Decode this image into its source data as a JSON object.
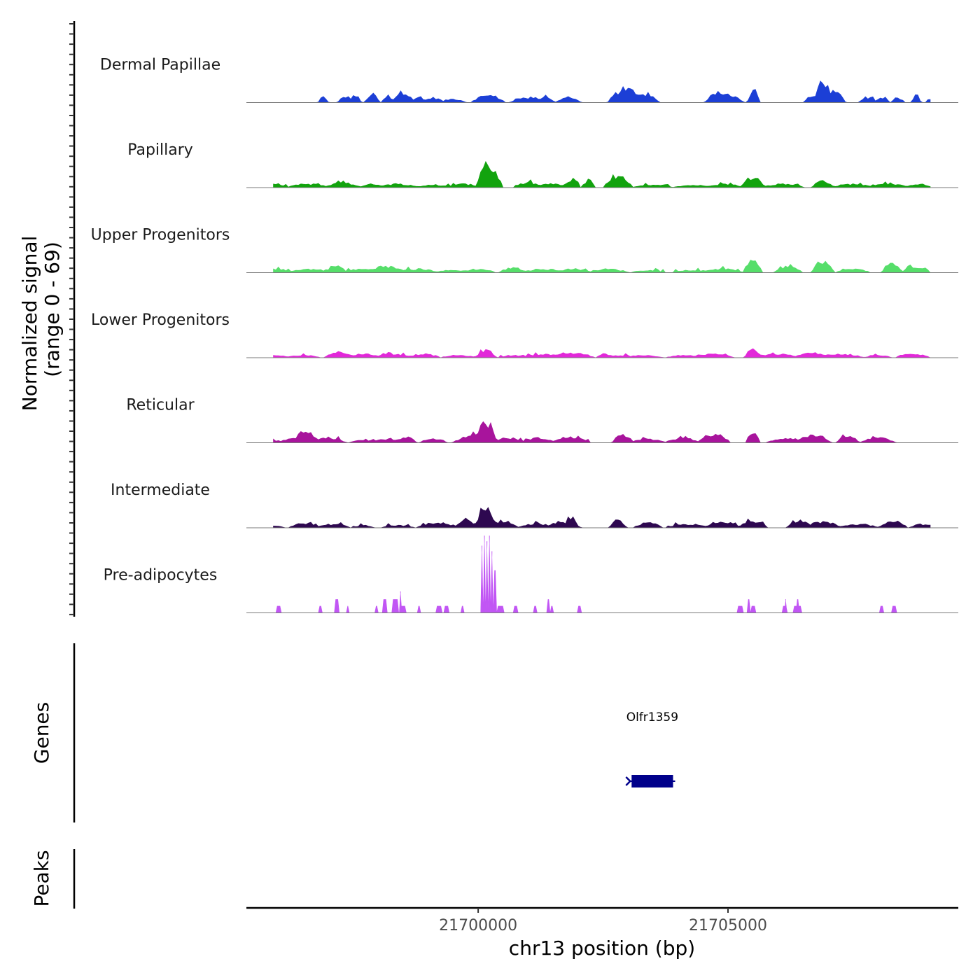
{
  "chart_data": {
    "type": "area",
    "title": "",
    "xlabel": "chr13 position (bp)",
    "signal_axis_label": [
      "Normalized signal",
      "(range 0 - 69)"
    ],
    "signal_range": [
      0,
      69
    ],
    "xlim": [
      21695360,
      21709610
    ],
    "x_ticks": [
      21700000,
      21705000
    ],
    "x_tick_labels": [
      "21700000",
      "21705000"
    ],
    "bin_width": 50,
    "series": [
      {
        "name": "Dermal Papillae",
        "color": "#1c3fd6",
        "peaks": [
          {
            "x": 21696900,
            "y": 5,
            "w": 70
          },
          {
            "x": 21697350,
            "y": 5,
            "w": 110
          },
          {
            "x": 21697530,
            "y": 6,
            "w": 90
          },
          {
            "x": 21697880,
            "y": 7,
            "w": 100
          },
          {
            "x": 21698200,
            "y": 5,
            "w": 90
          },
          {
            "x": 21698500,
            "y": 9,
            "w": 160
          },
          {
            "x": 21698800,
            "y": 4,
            "w": 120
          },
          {
            "x": 21699100,
            "y": 4,
            "w": 150
          },
          {
            "x": 21699500,
            "y": 3,
            "w": 180
          },
          {
            "x": 21700200,
            "y": 6,
            "w": 240
          },
          {
            "x": 21701000,
            "y": 4,
            "w": 250
          },
          {
            "x": 21701350,
            "y": 5,
            "w": 120
          },
          {
            "x": 21701800,
            "y": 4,
            "w": 180
          },
          {
            "x": 21702950,
            "y": 11,
            "w": 240
          },
          {
            "x": 21703350,
            "y": 7,
            "w": 180
          },
          {
            "x": 21704850,
            "y": 9,
            "w": 210
          },
          {
            "x": 21705100,
            "y": 5,
            "w": 150
          },
          {
            "x": 21705510,
            "y": 11,
            "w": 80
          },
          {
            "x": 21706650,
            "y": 5,
            "w": 90
          },
          {
            "x": 21706900,
            "y": 19,
            "w": 120
          },
          {
            "x": 21707120,
            "y": 9,
            "w": 160
          },
          {
            "x": 21707800,
            "y": 4,
            "w": 130
          },
          {
            "x": 21708100,
            "y": 4,
            "w": 100
          },
          {
            "x": 21708400,
            "y": 4,
            "w": 90
          },
          {
            "x": 21708760,
            "y": 5,
            "w": 70
          },
          {
            "x": 21709020,
            "y": 3,
            "w": 50
          }
        ]
      },
      {
        "name": "Papillary",
        "color": "#12a30e",
        "peaks": [
          {
            "x": 21695900,
            "y": 3,
            "w": 200
          },
          {
            "x": 21696600,
            "y": 3,
            "w": 300
          },
          {
            "x": 21697300,
            "y": 4,
            "w": 250
          },
          {
            "x": 21697900,
            "y": 3,
            "w": 200
          },
          {
            "x": 21698400,
            "y": 3,
            "w": 300
          },
          {
            "x": 21699100,
            "y": 2,
            "w": 300
          },
          {
            "x": 21699700,
            "y": 3,
            "w": 250
          },
          {
            "x": 21700150,
            "y": 22,
            "w": 120
          },
          {
            "x": 21700250,
            "y": 16,
            "w": 160
          },
          {
            "x": 21701000,
            "y": 4,
            "w": 200
          },
          {
            "x": 21701450,
            "y": 3,
            "w": 300
          },
          {
            "x": 21701900,
            "y": 7,
            "w": 100
          },
          {
            "x": 21702200,
            "y": 5,
            "w": 100
          },
          {
            "x": 21702800,
            "y": 9,
            "w": 200
          },
          {
            "x": 21703500,
            "y": 2,
            "w": 300
          },
          {
            "x": 21704300,
            "y": 2,
            "w": 300
          },
          {
            "x": 21704900,
            "y": 3,
            "w": 300
          },
          {
            "x": 21705500,
            "y": 9,
            "w": 160
          },
          {
            "x": 21706100,
            "y": 3,
            "w": 300
          },
          {
            "x": 21706900,
            "y": 6,
            "w": 150
          },
          {
            "x": 21707500,
            "y": 3,
            "w": 300
          },
          {
            "x": 21708200,
            "y": 3,
            "w": 300
          },
          {
            "x": 21708800,
            "y": 3,
            "w": 200
          }
        ]
      },
      {
        "name": "Upper Progenitors",
        "color": "#56de6a",
        "peaks": [
          {
            "x": 21695950,
            "y": 3,
            "w": 250
          },
          {
            "x": 21696600,
            "y": 3,
            "w": 300
          },
          {
            "x": 21697150,
            "y": 6,
            "w": 150
          },
          {
            "x": 21697700,
            "y": 3,
            "w": 300
          },
          {
            "x": 21698200,
            "y": 5,
            "w": 250
          },
          {
            "x": 21698800,
            "y": 3,
            "w": 300
          },
          {
            "x": 21699500,
            "y": 2,
            "w": 300
          },
          {
            "x": 21700000,
            "y": 3,
            "w": 250
          },
          {
            "x": 21700700,
            "y": 4,
            "w": 200
          },
          {
            "x": 21701300,
            "y": 3,
            "w": 300
          },
          {
            "x": 21701900,
            "y": 3,
            "w": 300
          },
          {
            "x": 21702600,
            "y": 3,
            "w": 300
          },
          {
            "x": 21703400,
            "y": 2,
            "w": 250
          },
          {
            "x": 21704300,
            "y": 2,
            "w": 300
          },
          {
            "x": 21704900,
            "y": 3,
            "w": 300
          },
          {
            "x": 21705500,
            "y": 11,
            "w": 120
          },
          {
            "x": 21706200,
            "y": 5,
            "w": 200
          },
          {
            "x": 21706900,
            "y": 10,
            "w": 150
          },
          {
            "x": 21707500,
            "y": 3,
            "w": 250
          },
          {
            "x": 21708300,
            "y": 7,
            "w": 150
          },
          {
            "x": 21708650,
            "y": 6,
            "w": 100
          },
          {
            "x": 21708900,
            "y": 4,
            "w": 100
          }
        ]
      },
      {
        "name": "Lower Progenitors",
        "color": "#e228d9",
        "peaks": [
          {
            "x": 21695950,
            "y": 2,
            "w": 200
          },
          {
            "x": 21696500,
            "y": 2,
            "w": 250
          },
          {
            "x": 21697200,
            "y": 5,
            "w": 200
          },
          {
            "x": 21697700,
            "y": 3,
            "w": 300
          },
          {
            "x": 21698300,
            "y": 3,
            "w": 300
          },
          {
            "x": 21698900,
            "y": 3,
            "w": 250
          },
          {
            "x": 21699600,
            "y": 2,
            "w": 250
          },
          {
            "x": 21700150,
            "y": 6,
            "w": 150
          },
          {
            "x": 21700700,
            "y": 2,
            "w": 200
          },
          {
            "x": 21701300,
            "y": 3,
            "w": 300
          },
          {
            "x": 21701900,
            "y": 4,
            "w": 300
          },
          {
            "x": 21702700,
            "y": 2,
            "w": 250
          },
          {
            "x": 21703300,
            "y": 2,
            "w": 300
          },
          {
            "x": 21704100,
            "y": 2,
            "w": 250
          },
          {
            "x": 21704700,
            "y": 3,
            "w": 300
          },
          {
            "x": 21705500,
            "y": 7,
            "w": 120
          },
          {
            "x": 21706000,
            "y": 3,
            "w": 300
          },
          {
            "x": 21706700,
            "y": 4,
            "w": 300
          },
          {
            "x": 21707300,
            "y": 3,
            "w": 300
          },
          {
            "x": 21708000,
            "y": 2,
            "w": 200
          },
          {
            "x": 21708700,
            "y": 3,
            "w": 250
          }
        ]
      },
      {
        "name": "Reticular",
        "color": "#a8149c",
        "peaks": [
          {
            "x": 21695950,
            "y": 2,
            "w": 100
          },
          {
            "x": 21696300,
            "y": 5,
            "w": 150
          },
          {
            "x": 21696560,
            "y": 11,
            "w": 160
          },
          {
            "x": 21697000,
            "y": 4,
            "w": 250
          },
          {
            "x": 21697700,
            "y": 2,
            "w": 200
          },
          {
            "x": 21698150,
            "y": 3,
            "w": 250
          },
          {
            "x": 21698550,
            "y": 5,
            "w": 150
          },
          {
            "x": 21699100,
            "y": 3,
            "w": 200
          },
          {
            "x": 21699700,
            "y": 3,
            "w": 150
          },
          {
            "x": 21700150,
            "y": 17,
            "w": 150
          },
          {
            "x": 21700000,
            "y": 7,
            "w": 250
          },
          {
            "x": 21700600,
            "y": 4,
            "w": 250
          },
          {
            "x": 21701200,
            "y": 4,
            "w": 250
          },
          {
            "x": 21701850,
            "y": 5,
            "w": 250
          },
          {
            "x": 21702900,
            "y": 7,
            "w": 150
          },
          {
            "x": 21703400,
            "y": 3,
            "w": 250
          },
          {
            "x": 21704100,
            "y": 4,
            "w": 250
          },
          {
            "x": 21704750,
            "y": 7,
            "w": 200
          },
          {
            "x": 21705500,
            "y": 8,
            "w": 100
          },
          {
            "x": 21706200,
            "y": 4,
            "w": 300
          },
          {
            "x": 21706700,
            "y": 6,
            "w": 250
          },
          {
            "x": 21707400,
            "y": 6,
            "w": 150
          },
          {
            "x": 21708000,
            "y": 4,
            "w": 250
          }
        ]
      },
      {
        "name": "Intermediate",
        "color": "#2e0850",
        "peaks": [
          {
            "x": 21695900,
            "y": 2,
            "w": 150
          },
          {
            "x": 21696500,
            "y": 4,
            "w": 200
          },
          {
            "x": 21697100,
            "y": 3,
            "w": 250
          },
          {
            "x": 21697700,
            "y": 2,
            "w": 150
          },
          {
            "x": 21698400,
            "y": 2,
            "w": 250
          },
          {
            "x": 21699200,
            "y": 4,
            "w": 300
          },
          {
            "x": 21699750,
            "y": 6,
            "w": 150
          },
          {
            "x": 21700150,
            "y": 17,
            "w": 150
          },
          {
            "x": 21700500,
            "y": 6,
            "w": 200
          },
          {
            "x": 21701200,
            "y": 3,
            "w": 300
          },
          {
            "x": 21701700,
            "y": 4,
            "w": 250
          },
          {
            "x": 21701850,
            "y": 9,
            "w": 100
          },
          {
            "x": 21702800,
            "y": 6,
            "w": 120
          },
          {
            "x": 21703400,
            "y": 4,
            "w": 200
          },
          {
            "x": 21704200,
            "y": 3,
            "w": 300
          },
          {
            "x": 21704900,
            "y": 5,
            "w": 250
          },
          {
            "x": 21705500,
            "y": 6,
            "w": 200
          },
          {
            "x": 21706400,
            "y": 6,
            "w": 150
          },
          {
            "x": 21706900,
            "y": 5,
            "w": 250
          },
          {
            "x": 21707600,
            "y": 3,
            "w": 300
          },
          {
            "x": 21708300,
            "y": 6,
            "w": 200
          },
          {
            "x": 21708900,
            "y": 3,
            "w": 200
          }
        ]
      },
      {
        "name": "Pre-adipocytes",
        "color": "#c156f4",
        "blocks": [
          {
            "x0": 21695950,
            "x1": 21696060,
            "y": 6
          },
          {
            "x0": 21696800,
            "x1": 21696880,
            "y": 6
          },
          {
            "x0": 21697120,
            "x1": 21697220,
            "y": 12
          },
          {
            "x0": 21697360,
            "x1": 21697420,
            "y": 6
          },
          {
            "x0": 21697930,
            "x1": 21698000,
            "y": 6
          },
          {
            "x0": 21698080,
            "x1": 21698180,
            "y": 12
          },
          {
            "x0": 21698270,
            "x1": 21698410,
            "y": 12
          },
          {
            "x0": 21698420,
            "x1": 21698470,
            "y": 19
          },
          {
            "x0": 21698420,
            "x1": 21698560,
            "y": 6
          },
          {
            "x0": 21698780,
            "x1": 21698850,
            "y": 6
          },
          {
            "x0": 21699150,
            "x1": 21699280,
            "y": 6
          },
          {
            "x0": 21699310,
            "x1": 21699420,
            "y": 6
          },
          {
            "x0": 21699650,
            "x1": 21699720,
            "y": 6
          },
          {
            "x0": 21700050,
            "x1": 21700100,
            "y": 60
          },
          {
            "x0": 21700100,
            "x1": 21700150,
            "y": 69
          },
          {
            "x0": 21700150,
            "x1": 21700200,
            "y": 64
          },
          {
            "x0": 21700200,
            "x1": 21700250,
            "y": 69
          },
          {
            "x0": 21700250,
            "x1": 21700300,
            "y": 55
          },
          {
            "x0": 21700300,
            "x1": 21700370,
            "y": 38
          },
          {
            "x0": 21700370,
            "x1": 21700520,
            "y": 6
          },
          {
            "x0": 21700700,
            "x1": 21700800,
            "y": 6
          },
          {
            "x0": 21701100,
            "x1": 21701180,
            "y": 6
          },
          {
            "x0": 21701370,
            "x1": 21701440,
            "y": 12
          },
          {
            "x0": 21701440,
            "x1": 21701510,
            "y": 6
          },
          {
            "x0": 21701980,
            "x1": 21702070,
            "y": 6
          },
          {
            "x0": 21705180,
            "x1": 21705310,
            "y": 6
          },
          {
            "x0": 21705380,
            "x1": 21705450,
            "y": 12
          },
          {
            "x0": 21705450,
            "x1": 21705560,
            "y": 6
          },
          {
            "x0": 21706080,
            "x1": 21706190,
            "y": 6
          },
          {
            "x0": 21706130,
            "x1": 21706180,
            "y": 12
          },
          {
            "x0": 21706360,
            "x1": 21706430,
            "y": 12
          },
          {
            "x0": 21706300,
            "x1": 21706480,
            "y": 6
          },
          {
            "x0": 21708030,
            "x1": 21708120,
            "y": 6
          },
          {
            "x0": 21708270,
            "x1": 21708380,
            "y": 6
          }
        ]
      }
    ],
    "gene_track_label": "Genes",
    "genes": [
      {
        "name": "Olfr1359",
        "start": 21703070,
        "end": 21703900,
        "strand": "-",
        "color": "#00008b"
      }
    ],
    "peaks_track_label": "Peaks"
  }
}
